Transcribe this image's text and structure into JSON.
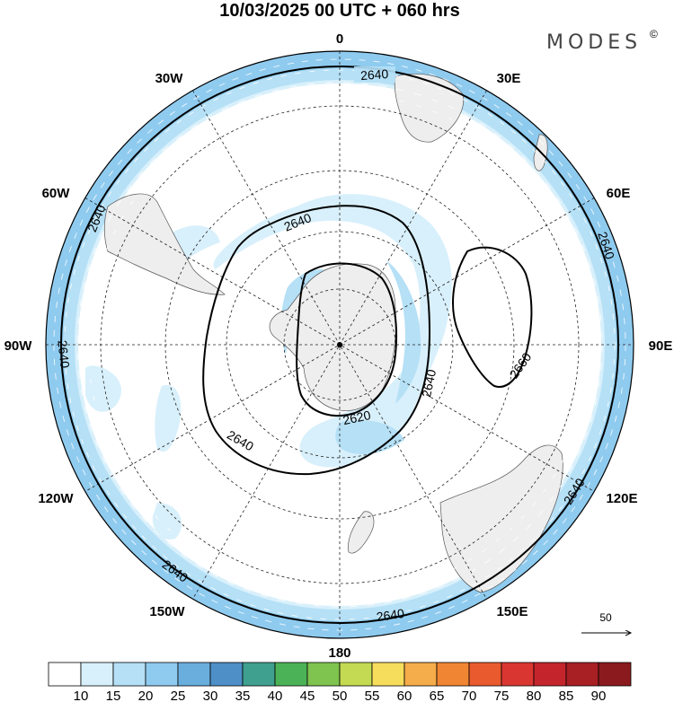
{
  "header": {
    "title": "10/03/2025  00 UTC  + 060 hrs",
    "brand": "MODES",
    "brand_mark": "©"
  },
  "map": {
    "projection": "south-polar-stereographic",
    "longitude_labels": {
      "top": "0",
      "top_right": "30E",
      "right_upper": "60E",
      "right": "90E",
      "right_lower": "120E",
      "bottom_right": "150E",
      "bottom": "180",
      "bottom_left": "150W",
      "left_lower": "120W",
      "left": "90W",
      "left_upper": "60W",
      "top_left": "30W"
    },
    "contour_interval_label_values": [
      "2640",
      "2640",
      "2640",
      "2640",
      "2640",
      "2640",
      "2640",
      "2640",
      "2620",
      "2660"
    ],
    "contour_labels": {
      "outer_top": "2640",
      "outer_left_upper": "2640",
      "outer_left": "2640",
      "outer_right_upper": "2640",
      "outer_right_lower": "2640",
      "outer_bottom_left": "2640",
      "outer_bottom": "2640",
      "inner_top": "2640",
      "inner_bottom": "2640",
      "inner_right": "2640",
      "low_center": "2620",
      "high_east": "2660"
    },
    "wind_reference_vector": "50",
    "colors": {
      "shade_10_15": "#d8f0fb",
      "shade_15_20": "#b5e0f6",
      "shade_20_25": "#8fcbef",
      "land": "#eeeeee",
      "contour": "#000000"
    }
  },
  "colorbar": {
    "labels": [
      "10",
      "15",
      "20",
      "25",
      "30",
      "35",
      "40",
      "45",
      "50",
      "55",
      "60",
      "65",
      "70",
      "75",
      "80",
      "85",
      "90"
    ],
    "colors": [
      "#ffffff",
      "#d8f0fb",
      "#b5e0f6",
      "#8fcbef",
      "#6aaede",
      "#4d8fc6",
      "#3fa08f",
      "#4cb257",
      "#7ec44f",
      "#c3da52",
      "#f7dd5c",
      "#f5ac4a",
      "#f08633",
      "#e95a2e",
      "#da3631",
      "#c4252c",
      "#a81f24",
      "#8b1a1e"
    ]
  }
}
